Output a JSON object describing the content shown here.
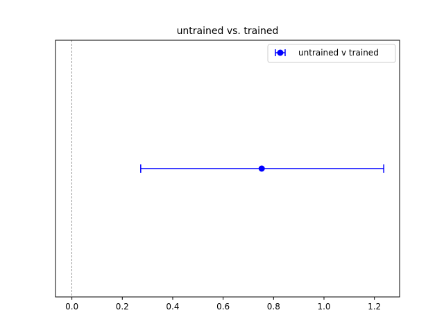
{
  "chart_data": {
    "type": "errorbar",
    "title": "untrained vs. trained",
    "xlabel": "",
    "ylabel": "",
    "xlim": [
      -0.065,
      1.3
    ],
    "ylim": [
      -1,
      1
    ],
    "x_ticks": [
      0.0,
      0.2,
      0.4,
      0.6,
      0.8,
      1.0,
      1.2
    ],
    "x_tick_labels": [
      "0.0",
      "0.2",
      "0.4",
      "0.6",
      "0.8",
      "1.0",
      "1.2"
    ],
    "y_ticks_visible": false,
    "grid": false,
    "reference_line": {
      "x": 0.0,
      "style": "dashed",
      "color": "#808080"
    },
    "series": [
      {
        "name": "untrained v trained",
        "color": "#0000ff",
        "marker": "circle",
        "points": [
          {
            "x": 0.753,
            "y": 0,
            "xerr_low": 0.273,
            "xerr_high": 1.237
          }
        ]
      }
    ],
    "legend": {
      "position": "top-right",
      "entries": [
        "untrained v trained"
      ]
    }
  }
}
